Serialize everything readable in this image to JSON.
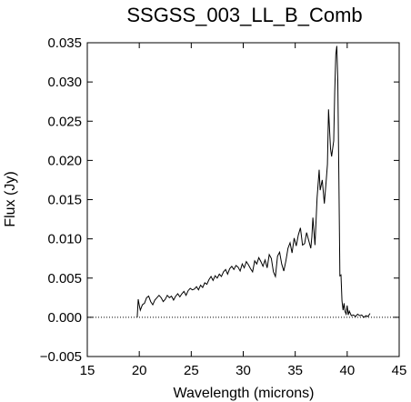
{
  "chart_data": {
    "type": "line",
    "title": "SSGSS_003_LL_B_Comb",
    "xlabel": "Wavelength (microns)",
    "ylabel": "Flux (Jy)",
    "xlim": [
      15,
      45
    ],
    "ylim": [
      -0.005,
      0.035
    ],
    "xticks": [
      15,
      20,
      25,
      30,
      35,
      40,
      45
    ],
    "xtick_labels": [
      "15",
      "20",
      "25",
      "30",
      "35",
      "40",
      "45"
    ],
    "yticks": [
      -0.005,
      0.0,
      0.005,
      0.01,
      0.015,
      0.02,
      0.025,
      0.03,
      0.035
    ],
    "ytick_labels": [
      "−0.005",
      "0.000",
      "0.005",
      "0.010",
      "0.015",
      "0.020",
      "0.025",
      "0.030",
      "0.035"
    ],
    "reference_line": {
      "y": 0.0,
      "style": "dotted"
    },
    "grid": false,
    "series": [
      {
        "x": [
          19.8,
          19.9,
          20.0,
          20.1,
          20.3,
          20.5,
          20.7,
          20.9,
          21.1,
          21.3,
          21.5,
          21.7,
          21.9,
          22.1,
          22.3,
          22.5,
          22.7,
          22.9,
          23.1,
          23.3,
          23.5,
          23.7,
          23.9,
          24.1,
          24.3,
          24.5,
          24.7,
          24.9,
          25.1,
          25.3,
          25.5,
          25.7,
          25.9,
          26.1,
          26.3,
          26.5,
          26.7,
          26.9,
          27.1,
          27.3,
          27.5,
          27.7,
          27.9,
          28.1,
          28.3,
          28.5,
          28.7,
          28.9,
          29.1,
          29.3,
          29.5,
          29.7,
          29.9,
          30.1,
          30.3,
          30.5,
          30.7,
          30.9,
          31.1,
          31.3,
          31.5,
          31.7,
          31.9,
          32.1,
          32.3,
          32.5,
          32.7,
          32.9,
          33.1,
          33.3,
          33.5,
          33.7,
          33.9,
          34.1,
          34.3,
          34.5,
          34.7,
          34.9,
          35.1,
          35.3,
          35.5,
          35.7,
          35.9,
          36.1,
          36.3,
          36.5,
          36.6,
          36.7,
          36.9,
          37.1,
          37.3,
          37.4,
          37.6,
          37.8,
          38.0,
          38.1,
          38.2,
          38.4,
          38.5,
          38.7,
          38.8,
          38.9,
          39.0,
          39.1,
          39.2,
          39.3,
          39.4,
          39.5,
          39.6,
          39.7,
          39.8,
          39.9,
          40.0,
          40.1,
          40.2,
          40.4,
          40.6,
          40.8,
          41.0,
          41.2,
          41.4,
          41.6,
          41.8,
          42.0,
          42.2
        ],
        "y": [
          0.0,
          0.0023,
          0.0015,
          0.0009,
          0.0016,
          0.0018,
          0.0025,
          0.0027,
          0.002,
          0.0016,
          0.0022,
          0.0025,
          0.0028,
          0.0025,
          0.002,
          0.0023,
          0.0028,
          0.0025,
          0.0027,
          0.0022,
          0.0027,
          0.003,
          0.0026,
          0.003,
          0.0033,
          0.0028,
          0.0034,
          0.0037,
          0.0035,
          0.0036,
          0.0039,
          0.0035,
          0.0041,
          0.0038,
          0.0044,
          0.0042,
          0.0048,
          0.0052,
          0.0047,
          0.0053,
          0.005,
          0.0055,
          0.0052,
          0.0058,
          0.0061,
          0.0055,
          0.0062,
          0.0065,
          0.0061,
          0.0066,
          0.0064,
          0.0059,
          0.0068,
          0.0063,
          0.0071,
          0.0067,
          0.0062,
          0.0058,
          0.0072,
          0.0068,
          0.0076,
          0.0071,
          0.0065,
          0.0073,
          0.0063,
          0.008,
          0.0075,
          0.0058,
          0.0052,
          0.0078,
          0.0083,
          0.0068,
          0.0059,
          0.0072,
          0.0088,
          0.0095,
          0.0082,
          0.0101,
          0.0091,
          0.0105,
          0.0114,
          0.0092,
          0.0094,
          0.0108,
          0.0098,
          0.0088,
          0.0103,
          0.0127,
          0.0092,
          0.0152,
          0.0188,
          0.0162,
          0.0175,
          0.0145,
          0.0178,
          0.0195,
          0.0265,
          0.0215,
          0.0205,
          0.0225,
          0.0287,
          0.0335,
          0.0346,
          0.0302,
          0.0176,
          0.0053,
          0.0054,
          0.0021,
          0.0009,
          0.0018,
          0.0007,
          0.0004,
          0.0015,
          0.0003,
          0.0008,
          0.0002,
          0.0003,
          0.0001,
          0.0004,
          0.0002,
          0.0003,
          0.0,
          0.0002,
          0.0001,
          0.0005
        ]
      }
    ]
  }
}
